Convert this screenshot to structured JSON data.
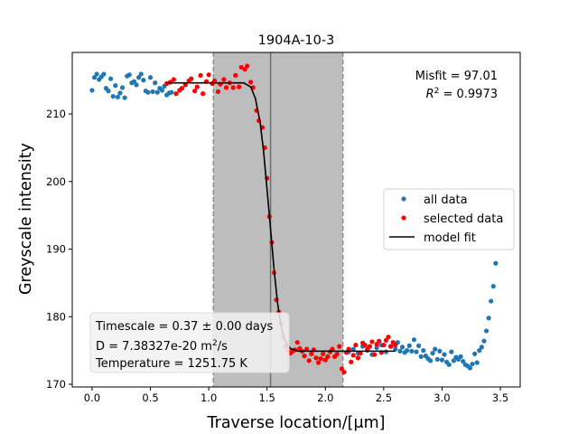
{
  "chart_data": {
    "type": "scatter",
    "title": "1904A-10-3",
    "xlabel": "Traverse location/[μm]",
    "ylabel": "Greyscale intensity",
    "xlim": [
      -0.17,
      3.67
    ],
    "ylim": [
      169.6,
      219.1
    ],
    "xticks": [
      0.0,
      0.5,
      1.0,
      1.5,
      2.0,
      2.5,
      3.0,
      3.5
    ],
    "xtick_labels": [
      "0.0",
      "0.5",
      "1.0",
      "1.5",
      "2.0",
      "2.5",
      "3.0",
      "3.5"
    ],
    "yticks": [
      170,
      180,
      190,
      200,
      210
    ],
    "ytick_labels": [
      "170",
      "180",
      "190",
      "200",
      "210"
    ],
    "grid": false,
    "legend_position": "center-right",
    "legend": [
      {
        "label": "all data",
        "kind": "point",
        "color": "#1f77b4"
      },
      {
        "label": "selected data",
        "kind": "point",
        "color": "#ff0000"
      },
      {
        "label": "model fit",
        "kind": "line",
        "color": "#000000"
      }
    ],
    "shaded_region": {
      "x0": 1.04,
      "x1": 2.15,
      "color": "#bdbdbd"
    },
    "dashed_lines_x": [
      1.04,
      2.15
    ],
    "solid_line_x": 1.53,
    "fit_text": {
      "misfit": "Misfit = 97.01",
      "r2_prefix": "R",
      "r2_sup": "2",
      "r2_suffix": " = 0.9973"
    },
    "info_box": {
      "timescale": "Timescale = 0.37 ± 0.00 days",
      "d_prefix": "D = 7.38327e-20 m",
      "d_sup": "2",
      "d_suffix": "/s",
      "temperature": "Temperature = 1251.75 K"
    },
    "series": [
      {
        "name": "all data",
        "color": "#1f77b4",
        "x": [
          0.0,
          0.02,
          0.04,
          0.06,
          0.08,
          0.1,
          0.12,
          0.14,
          0.16,
          0.18,
          0.2,
          0.22,
          0.24,
          0.26,
          0.28,
          0.3,
          0.32,
          0.34,
          0.36,
          0.38,
          0.4,
          0.42,
          0.44,
          0.46,
          0.48,
          0.5,
          0.52,
          0.54,
          0.56,
          0.58,
          0.6,
          0.62,
          0.64,
          0.66,
          0.68,
          2.2,
          2.24,
          2.28,
          2.32,
          2.36,
          2.4,
          2.44,
          2.48,
          2.52,
          2.56,
          2.6,
          2.62,
          2.64,
          2.66,
          2.68,
          2.7,
          2.72,
          2.74,
          2.76,
          2.78,
          2.8,
          2.82,
          2.84,
          2.86,
          2.88,
          2.9,
          2.92,
          2.94,
          2.96,
          2.98,
          3.0,
          3.02,
          3.04,
          3.06,
          3.08,
          3.1,
          3.12,
          3.14,
          3.16,
          3.18,
          3.2,
          3.22,
          3.24,
          3.26,
          3.28,
          3.3,
          3.32,
          3.34,
          3.36,
          3.38,
          3.4,
          3.42,
          3.44,
          3.46
        ],
        "y": [
          213.5,
          215.4,
          215.9,
          215.1,
          215.5,
          215.9,
          213.8,
          213.4,
          215.2,
          212.6,
          214.2,
          212.5,
          213.1,
          213.9,
          212.4,
          215.6,
          215.8,
          214.6,
          214.8,
          214.3,
          215.4,
          215.9,
          215.0,
          213.4,
          213.2,
          215.4,
          213.3,
          214.6,
          213.2,
          213.8,
          213.5,
          214.1,
          212.8,
          213.1,
          213.2,
          174.8,
          175.2,
          174.6,
          175.6,
          175.0,
          174.4,
          175.4,
          175.8,
          174.8,
          175.6,
          175.2,
          176.2,
          174.9,
          175.5,
          174.7,
          175.0,
          175.7,
          174.9,
          176.6,
          174.8,
          175.7,
          174.1,
          175.0,
          174.2,
          173.8,
          173.5,
          174.6,
          175.2,
          173.7,
          174.9,
          173.6,
          174.4,
          173.3,
          172.9,
          174.8,
          173.5,
          174.0,
          173.7,
          174.1,
          173.4,
          172.9,
          172.7,
          172.4,
          173.0,
          174.5,
          173.2,
          175.0,
          175.5,
          176.4,
          177.9,
          179.8,
          182.3,
          184.5,
          187.9
        ]
      },
      {
        "name": "selected data",
        "color": "#ff0000",
        "x": [
          0.64,
          0.67,
          0.7,
          0.72,
          0.75,
          0.77,
          0.8,
          0.83,
          0.85,
          0.88,
          0.9,
          0.93,
          0.95,
          0.98,
          1.0,
          1.03,
          1.05,
          1.08,
          1.1,
          1.13,
          1.15,
          1.18,
          1.21,
          1.23,
          1.26,
          1.28,
          1.31,
          1.33,
          1.36,
          1.38,
          1.41,
          1.43,
          1.46,
          1.48,
          1.5,
          1.52,
          1.54,
          1.56,
          1.58,
          1.6,
          1.62,
          1.64,
          1.66,
          1.68,
          1.7,
          1.72,
          1.74,
          1.76,
          1.78,
          1.8,
          1.82,
          1.84,
          1.86,
          1.88,
          1.9,
          1.92,
          1.94,
          1.96,
          1.98,
          2.0,
          2.02,
          2.04,
          2.06,
          2.08,
          2.1,
          2.12,
          2.14,
          2.16,
          2.18,
          2.2,
          2.22,
          2.24,
          2.26,
          2.28,
          2.3,
          2.32,
          2.34,
          2.36,
          2.38,
          2.4,
          2.42,
          2.44,
          2.46,
          2.48,
          2.5,
          2.52,
          2.54,
          2.56,
          2.58,
          2.6
        ],
        "y": [
          214.5,
          214.7,
          215.1,
          213.0,
          213.5,
          213.8,
          214.3,
          214.9,
          215.2,
          213.4,
          214.0,
          215.7,
          213.0,
          214.8,
          215.8,
          214.5,
          214.9,
          213.3,
          214.4,
          215.1,
          213.9,
          214.6,
          213.9,
          215.7,
          214.0,
          216.9,
          216.6,
          217.1,
          214.7,
          213.9,
          210.5,
          209.0,
          208.0,
          205.0,
          200.5,
          194.8,
          191.0,
          186.5,
          182.5,
          180.7,
          179.0,
          177.0,
          175.6,
          175.0,
          174.6,
          174.9,
          175.1,
          176.2,
          175.3,
          174.9,
          174.2,
          175.2,
          173.5,
          174.5,
          175.1,
          173.9,
          173.2,
          173.8,
          174.5,
          173.6,
          174.1,
          174.8,
          175.2,
          174.1,
          174.5,
          175.6,
          172.3,
          171.8,
          174.7,
          175.2,
          173.3,
          174.3,
          175.8,
          173.9,
          174.6,
          176.1,
          175.8,
          175.2,
          175.6,
          176.3,
          174.4,
          175.9,
          176.4,
          174.7,
          175.8,
          176.5,
          177.0,
          175.6,
          176.2,
          175.8
        ]
      },
      {
        "name": "model fit",
        "color": "#000000",
        "x": [
          0.64,
          1.3,
          1.36,
          1.4,
          1.44,
          1.47,
          1.5,
          1.53,
          1.56,
          1.59,
          1.62,
          1.65,
          1.7,
          1.76,
          2.6
        ],
        "y": [
          214.6,
          214.6,
          214.0,
          212.3,
          208.8,
          204.5,
          198.8,
          193.0,
          187.0,
          182.0,
          178.6,
          176.6,
          175.3,
          174.9,
          174.9
        ]
      }
    ]
  }
}
